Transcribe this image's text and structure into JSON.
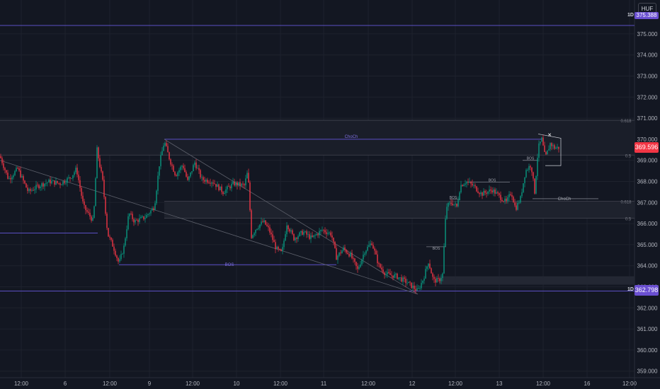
{
  "currency_button": "HUF",
  "chart_data": {
    "type": "candlestick",
    "ylim": [
      358.7,
      376.0
    ],
    "x_ticks": [
      "12:00",
      "6",
      "12:00",
      "9",
      "12:00",
      "10",
      "12:00",
      "11",
      "12:00",
      "12",
      "12:00",
      "13",
      "12:00",
      "16",
      "12:00"
    ],
    "y_ticks": [
      "359.000",
      "360.000",
      "361.000",
      "362.000",
      "363.000",
      "364.000",
      "365.000",
      "366.000",
      "367.000",
      "368.000",
      "369.000",
      "370.000",
      "371.000",
      "372.000",
      "373.000",
      "374.000",
      "375.000"
    ],
    "price_path": [
      [
        0,
        369.2
      ],
      [
        12,
        368.1
      ],
      [
        25,
        368.6
      ],
      [
        40,
        367.5
      ],
      [
        55,
        367.8
      ],
      [
        70,
        368.0
      ],
      [
        85,
        367.9
      ],
      [
        100,
        368.2
      ],
      [
        108,
        368.6
      ],
      [
        118,
        366.8
      ],
      [
        132,
        366.1
      ],
      [
        137,
        369.5
      ],
      [
        145,
        368.0
      ],
      [
        152,
        365.5
      ],
      [
        160,
        364.9
      ],
      [
        168,
        364.1
      ],
      [
        175,
        364.9
      ],
      [
        182,
        366.5
      ],
      [
        190,
        366.1
      ],
      [
        205,
        366.3
      ],
      [
        218,
        366.8
      ],
      [
        225,
        368.8
      ],
      [
        232,
        369.9
      ],
      [
        240,
        369.0
      ],
      [
        248,
        368.3
      ],
      [
        258,
        368.8
      ],
      [
        265,
        368.0
      ],
      [
        275,
        368.9
      ],
      [
        285,
        368.1
      ],
      [
        300,
        368.0
      ],
      [
        315,
        367.5
      ],
      [
        330,
        367.9
      ],
      [
        345,
        367.8
      ],
      [
        350,
        368.5
      ],
      [
        355,
        365.4
      ],
      [
        362,
        365.8
      ],
      [
        372,
        366.1
      ],
      [
        380,
        365.7
      ],
      [
        390,
        364.8
      ],
      [
        398,
        364.6
      ],
      [
        405,
        366.0
      ],
      [
        415,
        365.3
      ],
      [
        428,
        365.6
      ],
      [
        440,
        365.3
      ],
      [
        455,
        365.7
      ],
      [
        468,
        365.5
      ],
      [
        475,
        364.4
      ],
      [
        485,
        364.8
      ],
      [
        495,
        364.5
      ],
      [
        505,
        363.8
      ],
      [
        515,
        364.7
      ],
      [
        525,
        365.1
      ],
      [
        535,
        364.0
      ],
      [
        545,
        363.6
      ],
      [
        560,
        363.5
      ],
      [
        575,
        363.2
      ],
      [
        590,
        362.8
      ],
      [
        598,
        363.4
      ],
      [
        605,
        364.2
      ],
      [
        612,
        363.3
      ],
      [
        620,
        363.3
      ],
      [
        625,
        363.6
      ],
      [
        630,
        366.8
      ],
      [
        638,
        367.0
      ],
      [
        645,
        366.8
      ],
      [
        650,
        367.8
      ],
      [
        658,
        368.0
      ],
      [
        668,
        367.8
      ],
      [
        680,
        367.4
      ],
      [
        695,
        367.6
      ],
      [
        705,
        367.3
      ],
      [
        715,
        367.0
      ],
      [
        722,
        367.5
      ],
      [
        728,
        366.7
      ],
      [
        735,
        367.2
      ],
      [
        742,
        368.5
      ],
      [
        750,
        368.8
      ],
      [
        755,
        367.5
      ],
      [
        760,
        369.6
      ],
      [
        765,
        370.0
      ],
      [
        770,
        369.1
      ],
      [
        777,
        369.8
      ],
      [
        783,
        369.6
      ],
      [
        790,
        369.6
      ]
    ],
    "horizontal_levels": [
      375.4,
      370.9,
      370.0,
      369.25,
      367.06,
      366.25,
      362.8
    ],
    "annotations": [
      {
        "label": "ChoCh",
        "price": 370.0
      },
      {
        "label": "BOS",
        "price": 364.05
      },
      {
        "label": "BOS",
        "price": 364.9
      },
      {
        "label": "BOS",
        "price": 367.15
      },
      {
        "label": "BOS",
        "price": 367.97
      },
      {
        "label": "BOS",
        "price": 369.0
      },
      {
        "label": "ChoCh",
        "price": 367.18
      }
    ],
    "fib_labels": [
      "0.618",
      "0.5",
      "0.618",
      "0.5"
    ],
    "timeframe_labels": [
      "1D",
      "1D"
    ],
    "current_price": "369.596",
    "low_price": "362.798",
    "top_price_partial": "375.388"
  }
}
